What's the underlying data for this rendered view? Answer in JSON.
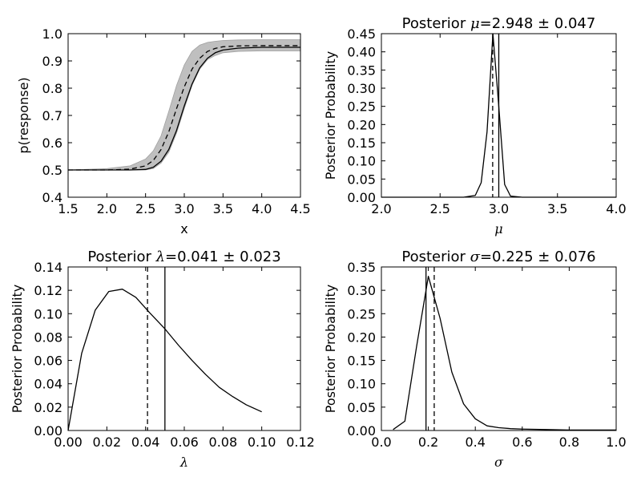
{
  "chart_data": [
    {
      "type": "line",
      "title": "",
      "xlabel": "x",
      "ylabel": "p(response)",
      "xlim": [
        1.5,
        4.5
      ],
      "ylim": [
        0.4,
        1.0
      ],
      "xticks": [
        1.5,
        2.0,
        2.5,
        3.0,
        3.5,
        4.0,
        4.5
      ],
      "yticks": [
        0.4,
        0.5,
        0.6,
        0.7,
        0.8,
        0.9,
        1.0
      ],
      "xtick_labels": [
        "1.5",
        "2.0",
        "2.5",
        "3.0",
        "3.5",
        "4.0",
        "4.5"
      ],
      "ytick_labels": [
        "0.4",
        "0.5",
        "0.6",
        "0.7",
        "0.8",
        "0.9",
        "1.0"
      ],
      "grid": false,
      "band": {
        "color": "#bfbfbf",
        "x": [
          1.5,
          2.0,
          2.3,
          2.5,
          2.6,
          2.7,
          2.8,
          2.9,
          3.0,
          3.1,
          3.2,
          3.3,
          3.4,
          3.5,
          3.7,
          4.0,
          4.5
        ],
        "lower": [
          0.5,
          0.5,
          0.5,
          0.5,
          0.505,
          0.525,
          0.565,
          0.635,
          0.725,
          0.81,
          0.87,
          0.905,
          0.92,
          0.93,
          0.935,
          0.937,
          0.937
        ],
        "upper": [
          0.5,
          0.505,
          0.515,
          0.54,
          0.57,
          0.625,
          0.715,
          0.81,
          0.885,
          0.935,
          0.958,
          0.968,
          0.972,
          0.975,
          0.977,
          0.978,
          0.978
        ]
      },
      "series": [
        {
          "style": "solid",
          "x": [
            1.5,
            2.0,
            2.3,
            2.5,
            2.6,
            2.7,
            2.8,
            2.9,
            3.0,
            3.1,
            3.2,
            3.3,
            3.4,
            3.5,
            3.7,
            4.0,
            4.5
          ],
          "y": [
            0.5,
            0.5,
            0.5,
            0.502,
            0.51,
            0.532,
            0.575,
            0.645,
            0.735,
            0.815,
            0.875,
            0.91,
            0.93,
            0.94,
            0.947,
            0.95,
            0.95
          ]
        },
        {
          "style": "dashed",
          "x": [
            1.5,
            2.0,
            2.3,
            2.5,
            2.6,
            2.7,
            2.8,
            2.9,
            3.0,
            3.1,
            3.2,
            3.3,
            3.4,
            3.5,
            3.7,
            4.0,
            4.5
          ],
          "y": [
            0.5,
            0.5,
            0.503,
            0.515,
            0.535,
            0.575,
            0.64,
            0.725,
            0.805,
            0.87,
            0.91,
            0.935,
            0.946,
            0.952,
            0.955,
            0.956,
            0.956
          ]
        }
      ]
    },
    {
      "type": "line",
      "title_prefix": "Posterior ",
      "title_symbol": "μ",
      "title_suffix": "=2.948 ± 0.047",
      "xlabel": "μ",
      "ylabel": "Posterior Probability",
      "xlim": [
        2.0,
        4.0
      ],
      "ylim": [
        0.0,
        0.45
      ],
      "xticks": [
        2.0,
        2.5,
        3.0,
        3.5,
        4.0
      ],
      "yticks": [
        0.0,
        0.05,
        0.1,
        0.15,
        0.2,
        0.25,
        0.3,
        0.35,
        0.4,
        0.45
      ],
      "xtick_labels": [
        "2.0",
        "2.5",
        "3.0",
        "3.5",
        "4.0"
      ],
      "ytick_labels": [
        "0.00",
        "0.05",
        "0.10",
        "0.15",
        "0.20",
        "0.25",
        "0.30",
        "0.35",
        "0.40",
        "0.45"
      ],
      "grid": false,
      "series": [
        {
          "style": "solid",
          "x": [
            2.0,
            2.7,
            2.8,
            2.85,
            2.9,
            2.95,
            3.0,
            3.05,
            3.1,
            3.2,
            4.0
          ],
          "y": [
            0.0,
            0.0,
            0.005,
            0.04,
            0.18,
            0.45,
            0.25,
            0.035,
            0.003,
            0.0,
            0.0
          ]
        }
      ],
      "vlines": [
        {
          "x": 2.948,
          "style": "dashed"
        },
        {
          "x": 3.0,
          "style": "solid"
        }
      ]
    },
    {
      "type": "line",
      "title_prefix": "Posterior ",
      "title_symbol": "λ",
      "title_suffix": "=0.041 ± 0.023",
      "xlabel": "λ",
      "ylabel": "Posterior Probability",
      "xlim": [
        0.0,
        0.12
      ],
      "ylim": [
        0.0,
        0.14
      ],
      "xticks": [
        0.0,
        0.02,
        0.04,
        0.06,
        0.08,
        0.1,
        0.12
      ],
      "yticks": [
        0.0,
        0.02,
        0.04,
        0.06,
        0.08,
        0.1,
        0.12,
        0.14
      ],
      "xtick_labels": [
        "0.00",
        "0.02",
        "0.04",
        "0.06",
        "0.08",
        "0.10",
        "0.12"
      ],
      "ytick_labels": [
        "0.00",
        "0.02",
        "0.04",
        "0.06",
        "0.08",
        "0.10",
        "0.12",
        "0.14"
      ],
      "grid": false,
      "series": [
        {
          "style": "solid",
          "x": [
            0.0,
            0.007,
            0.014,
            0.021,
            0.028,
            0.035,
            0.042,
            0.05,
            0.057,
            0.064,
            0.071,
            0.078,
            0.085,
            0.092,
            0.1
          ],
          "y": [
            0.0,
            0.066,
            0.103,
            0.119,
            0.121,
            0.114,
            0.101,
            0.087,
            0.073,
            0.06,
            0.048,
            0.037,
            0.029,
            0.022,
            0.016
          ]
        }
      ],
      "vlines": [
        {
          "x": 0.041,
          "style": "dashed"
        },
        {
          "x": 0.05,
          "style": "solid"
        }
      ]
    },
    {
      "type": "line",
      "title_prefix": "Posterior ",
      "title_symbol": "σ",
      "title_suffix": "=0.225 ± 0.076",
      "xlabel": "σ",
      "ylabel": "Posterior Probability",
      "xlim": [
        0.0,
        1.0
      ],
      "ylim": [
        0.0,
        0.35
      ],
      "xticks": [
        0.0,
        0.2,
        0.4,
        0.6,
        0.8,
        1.0
      ],
      "yticks": [
        0.0,
        0.05,
        0.1,
        0.15,
        0.2,
        0.25,
        0.3,
        0.35
      ],
      "xtick_labels": [
        "0.0",
        "0.2",
        "0.4",
        "0.6",
        "0.8",
        "1.0"
      ],
      "ytick_labels": [
        "0.00",
        "0.05",
        "0.10",
        "0.15",
        "0.20",
        "0.25",
        "0.30",
        "0.35"
      ],
      "grid": false,
      "series": [
        {
          "style": "solid",
          "x": [
            0.05,
            0.1,
            0.15,
            0.2,
            0.25,
            0.3,
            0.35,
            0.4,
            0.45,
            0.5,
            0.55,
            0.6,
            0.7,
            0.8,
            1.0
          ],
          "y": [
            0.002,
            0.02,
            0.18,
            0.33,
            0.24,
            0.125,
            0.057,
            0.025,
            0.01,
            0.006,
            0.004,
            0.003,
            0.002,
            0.001,
            0.001
          ]
        }
      ],
      "vlines": [
        {
          "x": 0.19,
          "style": "solid"
        },
        {
          "x": 0.225,
          "style": "dashed"
        }
      ]
    }
  ]
}
